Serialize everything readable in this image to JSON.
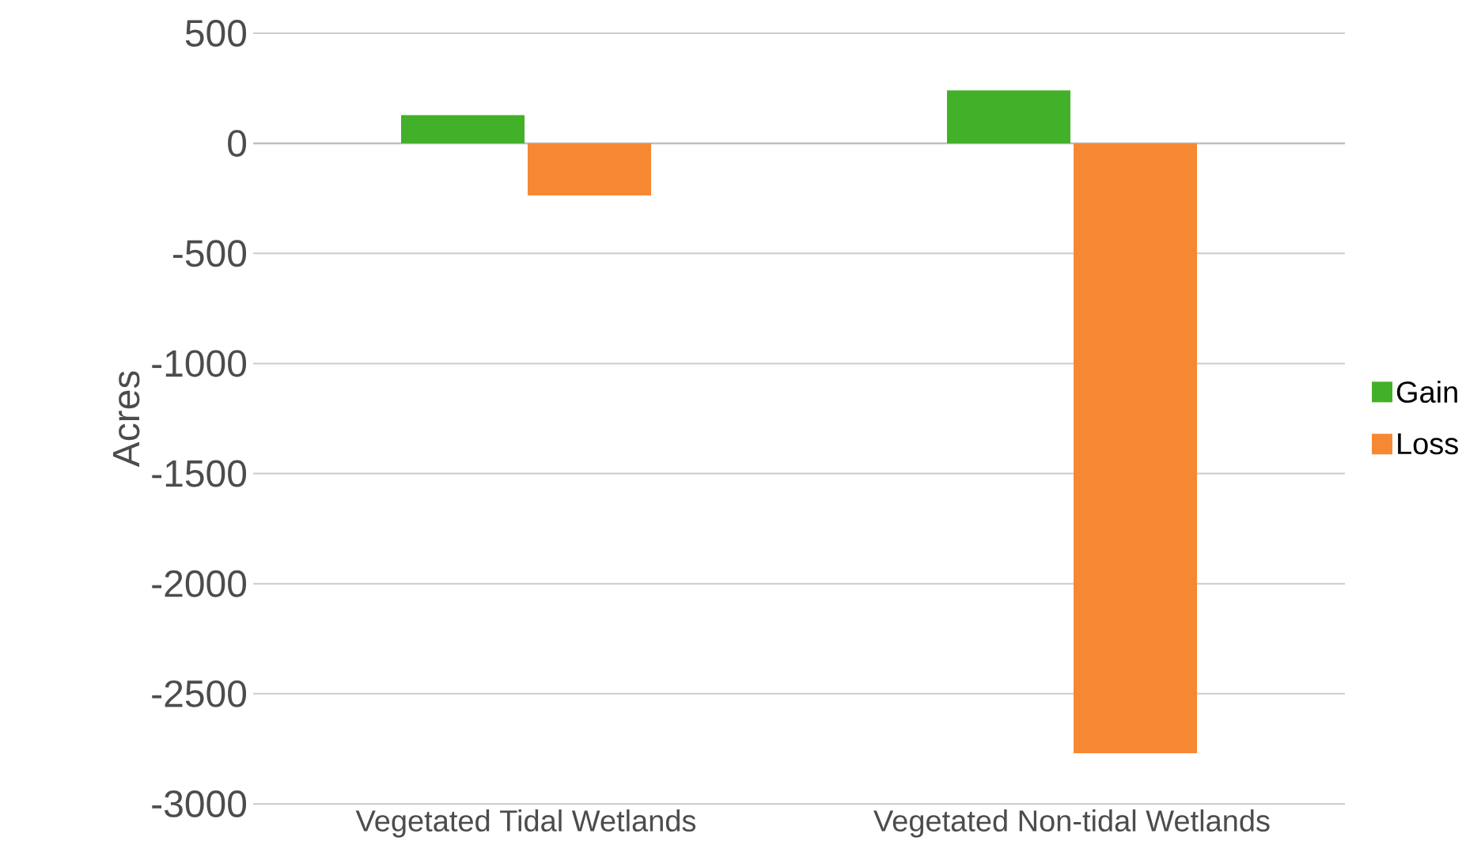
{
  "chart_data": {
    "type": "bar",
    "ylabel": "Acres",
    "categories": [
      "Vegetated Tidal Wetlands",
      "Vegetated Non-tidal Wetlands"
    ],
    "series": [
      {
        "name": "Gain",
        "color": "#43b02a",
        "values": [
          128,
          240
        ]
      },
      {
        "name": "Loss",
        "color": "#f68833",
        "values": [
          -237,
          -2770
        ]
      }
    ],
    "ylim": [
      -3000,
      500
    ],
    "yticks": [
      -3000,
      -2500,
      -2000,
      -1500,
      -1000,
      -500,
      0,
      500
    ],
    "grid": "y",
    "legend": "right"
  }
}
